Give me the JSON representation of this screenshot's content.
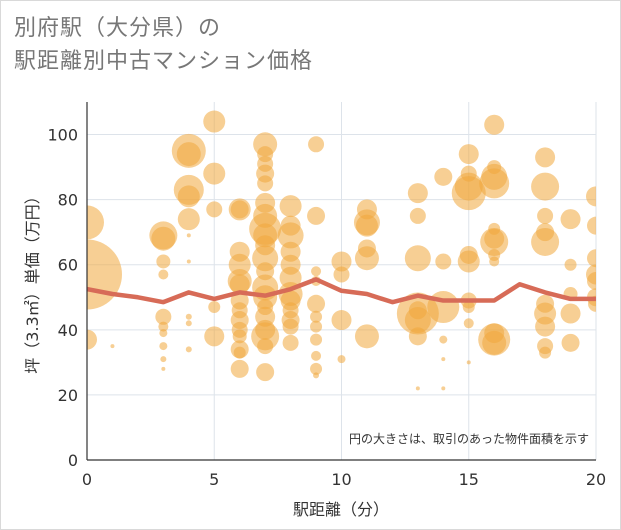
{
  "title_lines": [
    "別府駅（大分県）の",
    "駅距離別中古マンション価格"
  ],
  "colors": {
    "bubble": "#f0a83c",
    "line": "#d76b57",
    "grid": "#dde3ea",
    "plot_bg": "#ffffff"
  },
  "chart_data": {
    "type": "scatter",
    "title": "別府駅（大分県）の駅距離別中古マンション価格",
    "xlabel": "駅距離（分）",
    "ylabel": "坪（3.3㎡）単価（万円）",
    "xlim": [
      0,
      20
    ],
    "ylim": [
      0,
      110
    ],
    "xticks": [
      0,
      5,
      10,
      15,
      20
    ],
    "yticks": [
      0,
      20,
      40,
      60,
      80,
      100
    ],
    "grid": true,
    "annotation": "円の大きさは、取引のあった物件面積を示す",
    "bubbles": [
      {
        "x": 0,
        "y": 57,
        "r": 35
      },
      {
        "x": 0,
        "y": 73,
        "r": 17
      },
      {
        "x": 0,
        "y": 37,
        "r": 10
      },
      {
        "x": 1,
        "y": 35,
        "r": 2
      },
      {
        "x": 3,
        "y": 69,
        "r": 14
      },
      {
        "x": 3,
        "y": 68,
        "r": 12
      },
      {
        "x": 3,
        "y": 61,
        "r": 7
      },
      {
        "x": 3,
        "y": 57,
        "r": 5
      },
      {
        "x": 3,
        "y": 44,
        "r": 8
      },
      {
        "x": 3,
        "y": 41,
        "r": 5
      },
      {
        "x": 3,
        "y": 39,
        "r": 4
      },
      {
        "x": 3,
        "y": 35,
        "r": 4
      },
      {
        "x": 3,
        "y": 31,
        "r": 3
      },
      {
        "x": 3,
        "y": 28,
        "r": 2
      },
      {
        "x": 4,
        "y": 95,
        "r": 17
      },
      {
        "x": 4,
        "y": 94,
        "r": 12
      },
      {
        "x": 4,
        "y": 83,
        "r": 15
      },
      {
        "x": 4,
        "y": 81,
        "r": 11
      },
      {
        "x": 4,
        "y": 74,
        "r": 11
      },
      {
        "x": 4,
        "y": 69,
        "r": 2
      },
      {
        "x": 4,
        "y": 61,
        "r": 2
      },
      {
        "x": 4,
        "y": 44,
        "r": 3
      },
      {
        "x": 4,
        "y": 42,
        "r": 3
      },
      {
        "x": 4,
        "y": 34,
        "r": 3
      },
      {
        "x": 5,
        "y": 104,
        "r": 11
      },
      {
        "x": 5,
        "y": 88,
        "r": 11
      },
      {
        "x": 5,
        "y": 77,
        "r": 8
      },
      {
        "x": 5,
        "y": 47,
        "r": 6
      },
      {
        "x": 5,
        "y": 38,
        "r": 10
      },
      {
        "x": 6,
        "y": 77,
        "r": 11
      },
      {
        "x": 6,
        "y": 77,
        "r": 9
      },
      {
        "x": 6,
        "y": 64,
        "r": 10
      },
      {
        "x": 6,
        "y": 60,
        "r": 11
      },
      {
        "x": 6,
        "y": 55,
        "r": 12
      },
      {
        "x": 6,
        "y": 54,
        "r": 10
      },
      {
        "x": 6,
        "y": 49,
        "r": 9
      },
      {
        "x": 6,
        "y": 46,
        "r": 8
      },
      {
        "x": 6,
        "y": 43,
        "r": 9
      },
      {
        "x": 6,
        "y": 40,
        "r": 8
      },
      {
        "x": 6,
        "y": 38,
        "r": 7
      },
      {
        "x": 6,
        "y": 34,
        "r": 9
      },
      {
        "x": 6,
        "y": 33,
        "r": 6
      },
      {
        "x": 6,
        "y": 28,
        "r": 9
      },
      {
        "x": 7,
        "y": 97,
        "r": 12
      },
      {
        "x": 7,
        "y": 94,
        "r": 8
      },
      {
        "x": 7,
        "y": 91,
        "r": 8
      },
      {
        "x": 7,
        "y": 88,
        "r": 9
      },
      {
        "x": 7,
        "y": 85,
        "r": 8
      },
      {
        "x": 7,
        "y": 79,
        "r": 10
      },
      {
        "x": 7,
        "y": 75,
        "r": 12
      },
      {
        "x": 7,
        "y": 71,
        "r": 16
      },
      {
        "x": 7,
        "y": 69,
        "r": 12
      },
      {
        "x": 7,
        "y": 66,
        "r": 10
      },
      {
        "x": 7,
        "y": 62,
        "r": 13
      },
      {
        "x": 7,
        "y": 58,
        "r": 9
      },
      {
        "x": 7,
        "y": 53,
        "r": 13
      },
      {
        "x": 7,
        "y": 50,
        "r": 12
      },
      {
        "x": 7,
        "y": 47,
        "r": 8
      },
      {
        "x": 7,
        "y": 44,
        "r": 10
      },
      {
        "x": 7,
        "y": 40,
        "r": 10
      },
      {
        "x": 7,
        "y": 38,
        "r": 14
      },
      {
        "x": 7,
        "y": 35,
        "r": 8
      },
      {
        "x": 7,
        "y": 27,
        "r": 9
      },
      {
        "x": 8,
        "y": 78,
        "r": 11
      },
      {
        "x": 8,
        "y": 72,
        "r": 10
      },
      {
        "x": 8,
        "y": 69,
        "r": 13
      },
      {
        "x": 8,
        "y": 64,
        "r": 10
      },
      {
        "x": 8,
        "y": 60,
        "r": 10
      },
      {
        "x": 8,
        "y": 56,
        "r": 11
      },
      {
        "x": 8,
        "y": 51,
        "r": 12
      },
      {
        "x": 8,
        "y": 49,
        "r": 10
      },
      {
        "x": 8,
        "y": 46,
        "r": 8
      },
      {
        "x": 8,
        "y": 43,
        "r": 9
      },
      {
        "x": 8,
        "y": 41,
        "r": 8
      },
      {
        "x": 8,
        "y": 36,
        "r": 8
      },
      {
        "x": 9,
        "y": 97,
        "r": 8
      },
      {
        "x": 9,
        "y": 75,
        "r": 9
      },
      {
        "x": 9,
        "y": 58,
        "r": 5
      },
      {
        "x": 9,
        "y": 55,
        "r": 5
      },
      {
        "x": 9,
        "y": 48,
        "r": 9
      },
      {
        "x": 9,
        "y": 44,
        "r": 6
      },
      {
        "x": 9,
        "y": 41,
        "r": 6
      },
      {
        "x": 9,
        "y": 37,
        "r": 6
      },
      {
        "x": 9,
        "y": 32,
        "r": 5
      },
      {
        "x": 9,
        "y": 28,
        "r": 6
      },
      {
        "x": 9,
        "y": 26,
        "r": 3
      },
      {
        "x": 10,
        "y": 61,
        "r": 10
      },
      {
        "x": 10,
        "y": 57,
        "r": 8
      },
      {
        "x": 10,
        "y": 43,
        "r": 10
      },
      {
        "x": 10,
        "y": 31,
        "r": 4
      },
      {
        "x": 11,
        "y": 77,
        "r": 10
      },
      {
        "x": 11,
        "y": 73,
        "r": 13
      },
      {
        "x": 11,
        "y": 72,
        "r": 11
      },
      {
        "x": 11,
        "y": 65,
        "r": 9
      },
      {
        "x": 11,
        "y": 62,
        "r": 12
      },
      {
        "x": 11,
        "y": 38,
        "r": 12
      },
      {
        "x": 13,
        "y": 82,
        "r": 10
      },
      {
        "x": 13,
        "y": 75,
        "r": 8
      },
      {
        "x": 13,
        "y": 62,
        "r": 13
      },
      {
        "x": 13,
        "y": 46,
        "r": 9
      },
      {
        "x": 13,
        "y": 45,
        "r": 21
      },
      {
        "x": 13,
        "y": 43,
        "r": 13
      },
      {
        "x": 13,
        "y": 38,
        "r": 9
      },
      {
        "x": 13,
        "y": 22,
        "r": 2
      },
      {
        "x": 14,
        "y": 87,
        "r": 9
      },
      {
        "x": 14,
        "y": 61,
        "r": 8
      },
      {
        "x": 14,
        "y": 47,
        "r": 16
      },
      {
        "x": 14,
        "y": 37,
        "r": 4
      },
      {
        "x": 14,
        "y": 31,
        "r": 2
      },
      {
        "x": 14,
        "y": 22,
        "r": 2
      },
      {
        "x": 15,
        "y": 94,
        "r": 10
      },
      {
        "x": 15,
        "y": 88,
        "r": 8
      },
      {
        "x": 15,
        "y": 84,
        "r": 14
      },
      {
        "x": 15,
        "y": 82,
        "r": 17
      },
      {
        "x": 15,
        "y": 63,
        "r": 9
      },
      {
        "x": 15,
        "y": 61,
        "r": 11
      },
      {
        "x": 15,
        "y": 49,
        "r": 8
      },
      {
        "x": 15,
        "y": 47,
        "r": 6
      },
      {
        "x": 15,
        "y": 42,
        "r": 5
      },
      {
        "x": 15,
        "y": 30,
        "r": 2
      },
      {
        "x": 16,
        "y": 103,
        "r": 10
      },
      {
        "x": 16,
        "y": 90,
        "r": 7
      },
      {
        "x": 16,
        "y": 87,
        "r": 13
      },
      {
        "x": 16,
        "y": 85,
        "r": 15
      },
      {
        "x": 16,
        "y": 71,
        "r": 6
      },
      {
        "x": 16,
        "y": 68,
        "r": 10
      },
      {
        "x": 16,
        "y": 67,
        "r": 14
      },
      {
        "x": 16,
        "y": 63,
        "r": 6
      },
      {
        "x": 16,
        "y": 61,
        "r": 5
      },
      {
        "x": 16,
        "y": 39,
        "r": 10
      },
      {
        "x": 16,
        "y": 37,
        "r": 16
      },
      {
        "x": 16,
        "y": 36,
        "r": 12
      },
      {
        "x": 18,
        "y": 93,
        "r": 10
      },
      {
        "x": 18,
        "y": 84,
        "r": 14
      },
      {
        "x": 18,
        "y": 75,
        "r": 8
      },
      {
        "x": 18,
        "y": 70,
        "r": 9
      },
      {
        "x": 18,
        "y": 67,
        "r": 14
      },
      {
        "x": 18,
        "y": 48,
        "r": 9
      },
      {
        "x": 18,
        "y": 45,
        "r": 11
      },
      {
        "x": 18,
        "y": 41,
        "r": 10
      },
      {
        "x": 18,
        "y": 35,
        "r": 8
      },
      {
        "x": 18,
        "y": 33,
        "r": 6
      },
      {
        "x": 19,
        "y": 74,
        "r": 10
      },
      {
        "x": 19,
        "y": 60,
        "r": 6
      },
      {
        "x": 19,
        "y": 51,
        "r": 7
      },
      {
        "x": 19,
        "y": 45,
        "r": 10
      },
      {
        "x": 19,
        "y": 36,
        "r": 9
      },
      {
        "x": 20,
        "y": 81,
        "r": 10
      },
      {
        "x": 20,
        "y": 72,
        "r": 9
      },
      {
        "x": 20,
        "y": 62,
        "r": 9
      },
      {
        "x": 20,
        "y": 57,
        "r": 10
      },
      {
        "x": 20,
        "y": 55,
        "r": 9
      },
      {
        "x": 20,
        "y": 50,
        "r": 9
      },
      {
        "x": 20,
        "y": 48,
        "r": 8
      }
    ],
    "line": {
      "x": [
        0,
        1,
        2,
        3,
        4,
        5,
        6,
        7,
        8,
        9,
        10,
        11,
        12,
        13,
        14,
        15,
        16,
        17,
        18,
        19,
        20
      ],
      "y": [
        52.5,
        51,
        50,
        48.5,
        51.5,
        49.5,
        51.5,
        50.5,
        52.5,
        55.5,
        52,
        51,
        48.5,
        50.5,
        49,
        49,
        49,
        54,
        51.5,
        49.5,
        49.5
      ]
    }
  }
}
